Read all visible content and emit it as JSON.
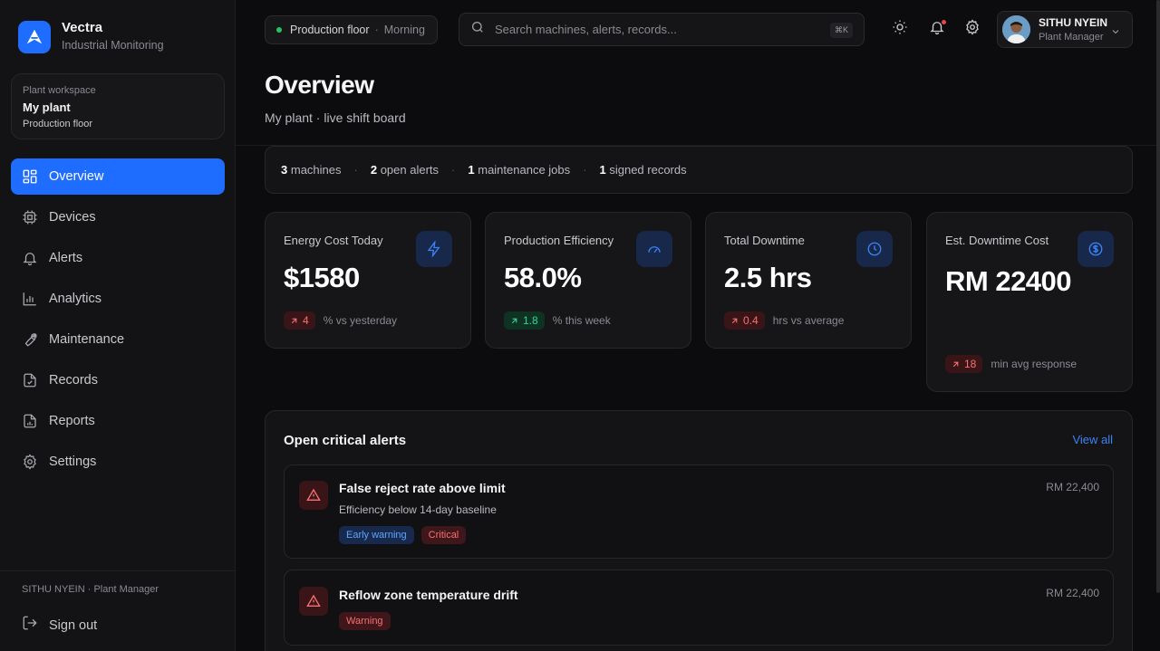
{
  "brand": {
    "name": "Vectra",
    "subtitle": "Industrial Monitoring"
  },
  "workspace": {
    "label": "Plant workspace",
    "name": "My plant",
    "sub": "Production floor"
  },
  "nav": [
    {
      "label": "Overview",
      "icon": "grid-icon",
      "active": true
    },
    {
      "label": "Devices",
      "icon": "chip-icon"
    },
    {
      "label": "Alerts",
      "icon": "bell-icon"
    },
    {
      "label": "Analytics",
      "icon": "bar-chart-icon"
    },
    {
      "label": "Maintenance",
      "icon": "wrench-icon"
    },
    {
      "label": "Records",
      "icon": "file-check-icon"
    },
    {
      "label": "Reports",
      "icon": "report-icon"
    },
    {
      "label": "Settings",
      "icon": "gear-icon"
    }
  ],
  "sidebar_footer": {
    "user": "SITHU NYEIN · Plant Manager",
    "signout": "Sign out"
  },
  "topbar": {
    "shift_location": "Production floor",
    "shift_period": "Morning",
    "search_placeholder": "Search machines, alerts, records...",
    "search_shortcut": "⌘K",
    "user_name": "SITHU NYEIN",
    "user_role": "Plant Manager"
  },
  "page": {
    "title": "Overview",
    "subtitle": "My plant · live shift board"
  },
  "stats": [
    {
      "count": "3",
      "label": "machines"
    },
    {
      "count": "2",
      "label": "open alerts"
    },
    {
      "count": "1",
      "label": "maintenance jobs"
    },
    {
      "count": "1",
      "label": "signed records"
    }
  ],
  "kpis": [
    {
      "label": "Energy Cost Today",
      "value": "$1580",
      "delta": "4",
      "delta_color": "red",
      "note": "% vs yesterday",
      "icon": "lightning-icon"
    },
    {
      "label": "Production Efficiency",
      "value": "58.0%",
      "delta": "1.8",
      "delta_color": "green",
      "note": "% this week",
      "icon": "gauge-icon"
    },
    {
      "label": "Total Downtime",
      "value": "2.5 hrs",
      "delta": "0.4",
      "delta_color": "red",
      "note": "hrs vs average",
      "icon": "clock-icon"
    },
    {
      "label": "Est. Downtime Cost",
      "value": "RM 22400",
      "delta": "18",
      "delta_color": "red",
      "note": "min avg response",
      "icon": "dollar-icon"
    }
  ],
  "alerts": {
    "title": "Open critical alerts",
    "view_all": "View all",
    "items": [
      {
        "title": "False reject rate above limit",
        "sub": "Efficiency below 14-day baseline",
        "cost": "RM 22,400",
        "tags": [
          "Early warning",
          "Critical"
        ]
      },
      {
        "title": "Reflow zone temperature drift",
        "sub": "",
        "cost": "RM 22,400",
        "tags": [
          "Warning"
        ]
      }
    ]
  },
  "colors": {
    "accent": "#1e6dff",
    "danger": "#f87171",
    "success": "#34d399",
    "background": "#0c0c0e"
  }
}
